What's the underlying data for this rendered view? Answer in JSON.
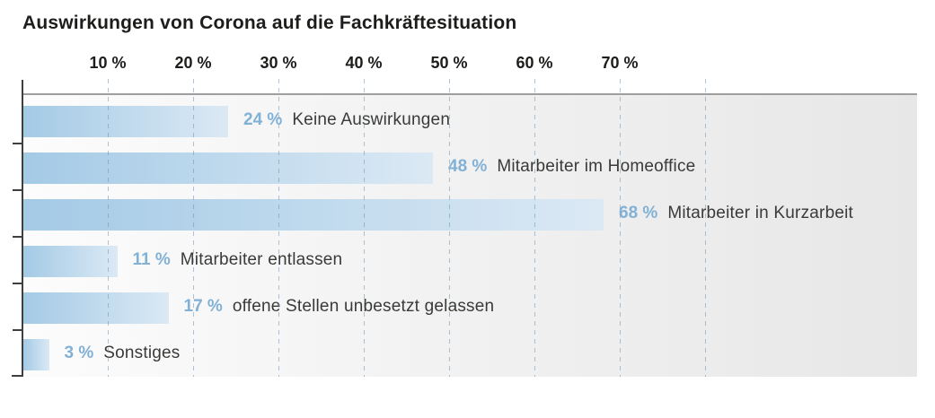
{
  "page": {
    "background": "#ffffff"
  },
  "chart_data": {
    "type": "bar",
    "orientation": "horizontal",
    "title": "Auswirkungen von Corona auf die Fachkräftesituation",
    "categories": [
      "Keine Auswirkungen",
      "Mitarbeiter im Homeoffice",
      "Mitarbeiter in Kurzarbeit",
      "Mitarbeiter entlassen",
      "offene Stellen unbesetzt gelassen",
      "Sonstiges"
    ],
    "values": [
      24,
      48,
      68,
      11,
      17,
      3
    ],
    "value_label_suffix": " %",
    "x_axis": {
      "tick_labels": [
        "10 %",
        "20 %",
        "30 %",
        "40 %",
        "50 %",
        "60 %",
        "70 %"
      ],
      "tick_values_pct": [
        10,
        20,
        30,
        40,
        50,
        60,
        70
      ],
      "gridlines_pct": [
        10,
        20,
        30,
        40,
        50,
        60,
        70,
        80
      ],
      "range_pct": [
        0,
        104.8
      ],
      "grid_style": "dashed-vertical"
    },
    "legend": "none",
    "colors": {
      "title_text": "#1d1d1b",
      "tick_label_text": "#1d1d1b",
      "value_text": "#82b1d6",
      "category_text": "#3a3a39",
      "bar_gradient_start": "#a4cae6",
      "bar_gradient_end": "#dbe9f4",
      "gridline": "#8db4d0",
      "axis_line": "#3f3f3f",
      "plot_top_line": "#9e9e9e",
      "plot_bg_left": "#fcfcfc",
      "plot_bg_right": "#e7e7e7"
    }
  }
}
